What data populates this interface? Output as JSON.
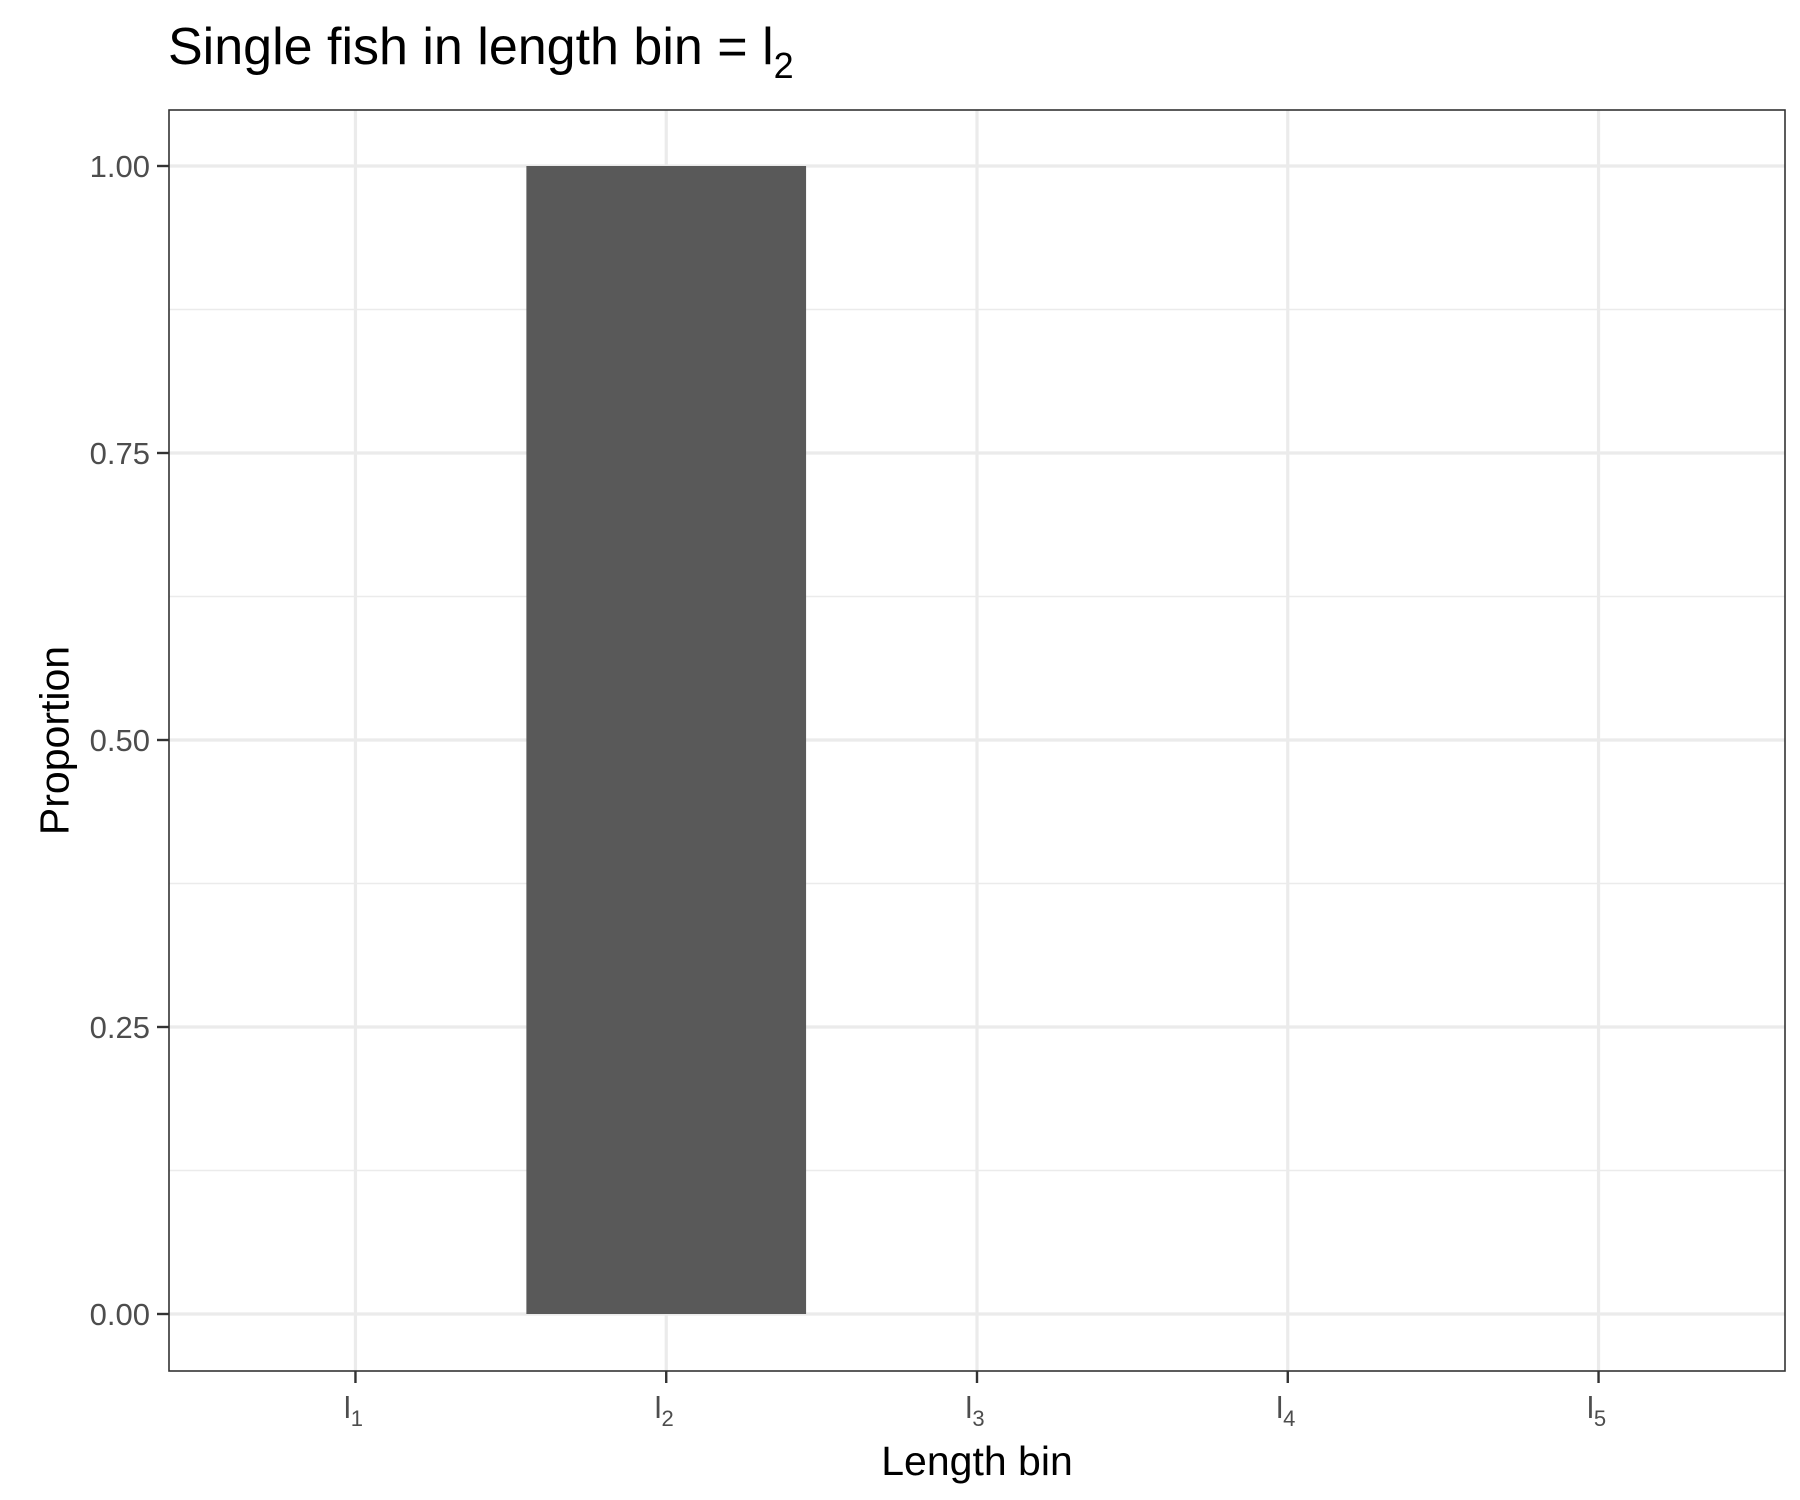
{
  "chart_data": {
    "type": "bar",
    "title": {
      "text": "Single fish in length bin = l",
      "subscript": "2"
    },
    "xlabel": "Length bin",
    "ylabel": "Proportion",
    "categories": [
      {
        "base": "l",
        "sub": "1"
      },
      {
        "base": "l",
        "sub": "2"
      },
      {
        "base": "l",
        "sub": "3"
      },
      {
        "base": "l",
        "sub": "4"
      },
      {
        "base": "l",
        "sub": "5"
      }
    ],
    "values": [
      0,
      1,
      0,
      0,
      0
    ],
    "yticks": [
      "0.00",
      "0.25",
      "0.50",
      "0.75",
      "1.00"
    ],
    "ylim": [
      0,
      1
    ],
    "grid": true,
    "bar_color": "#595959",
    "grid_color": "#ebebeb",
    "panel_border_color": "#333333"
  }
}
